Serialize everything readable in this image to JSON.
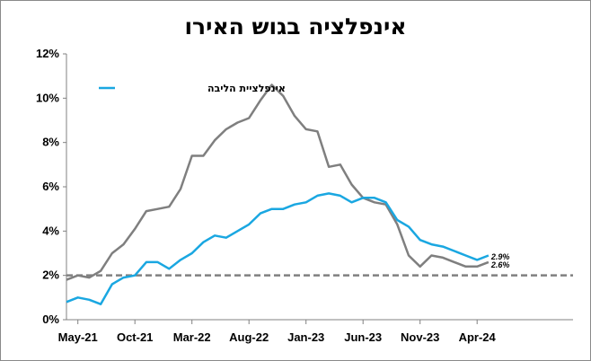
{
  "chart_data": {
    "type": "line",
    "title": "אינפלציה בגוש האירו",
    "xlabel": "",
    "ylabel": "",
    "ylim": [
      0,
      12
    ],
    "y_ticks": [
      "0%",
      "2%",
      "4%",
      "6%",
      "8%",
      "10%",
      "12%"
    ],
    "x_tick_labels": [
      "May-21",
      "Oct-21",
      "Mar-22",
      "Aug-22",
      "Jan-23",
      "Jun-23",
      "Nov-23",
      "Apr-24"
    ],
    "x": [
      "Apr-21",
      "May-21",
      "Jun-21",
      "Jul-21",
      "Aug-21",
      "Sep-21",
      "Oct-21",
      "Nov-21",
      "Dec-21",
      "Jan-22",
      "Feb-22",
      "Mar-22",
      "Apr-22",
      "May-22",
      "Jun-22",
      "Jul-22",
      "Aug-22",
      "Sep-22",
      "Oct-22",
      "Nov-22",
      "Dec-22",
      "Jan-23",
      "Feb-23",
      "Mar-23",
      "Apr-23",
      "May-23",
      "Jun-23",
      "Jul-23",
      "Aug-23",
      "Sep-23",
      "Oct-23",
      "Nov-23",
      "Dec-23",
      "Jan-24",
      "Feb-24",
      "Mar-24",
      "Apr-24",
      "May-24"
    ],
    "series": [
      {
        "name": "",
        "color": "#7f7f7f",
        "values": [
          1.8,
          2.0,
          1.9,
          2.2,
          3.0,
          3.4,
          4.1,
          4.9,
          5.0,
          5.1,
          5.9,
          7.4,
          7.4,
          8.1,
          8.6,
          8.9,
          9.1,
          9.9,
          10.6,
          10.1,
          9.2,
          8.6,
          8.5,
          6.9,
          7.0,
          6.1,
          5.5,
          5.3,
          5.2,
          4.3,
          2.9,
          2.4,
          2.9,
          2.8,
          2.6,
          2.4,
          2.4,
          2.6
        ]
      },
      {
        "name": "אינפלציית הליבה",
        "color": "#1aa7e1",
        "values": [
          0.8,
          1.0,
          0.9,
          0.7,
          1.6,
          1.9,
          2.0,
          2.6,
          2.6,
          2.3,
          2.7,
          3.0,
          3.5,
          3.8,
          3.7,
          4.0,
          4.3,
          4.8,
          5.0,
          5.0,
          5.2,
          5.3,
          5.6,
          5.7,
          5.6,
          5.3,
          5.5,
          5.5,
          5.3,
          4.5,
          4.2,
          3.6,
          3.4,
          3.3,
          3.1,
          2.9,
          2.7,
          2.9
        ]
      }
    ],
    "reference_line": {
      "value": 2.0,
      "color": "#808080",
      "style": "dashed"
    },
    "end_labels": [
      "2.9%",
      "2.6%"
    ],
    "legend_position": "top-left",
    "grid": false
  }
}
